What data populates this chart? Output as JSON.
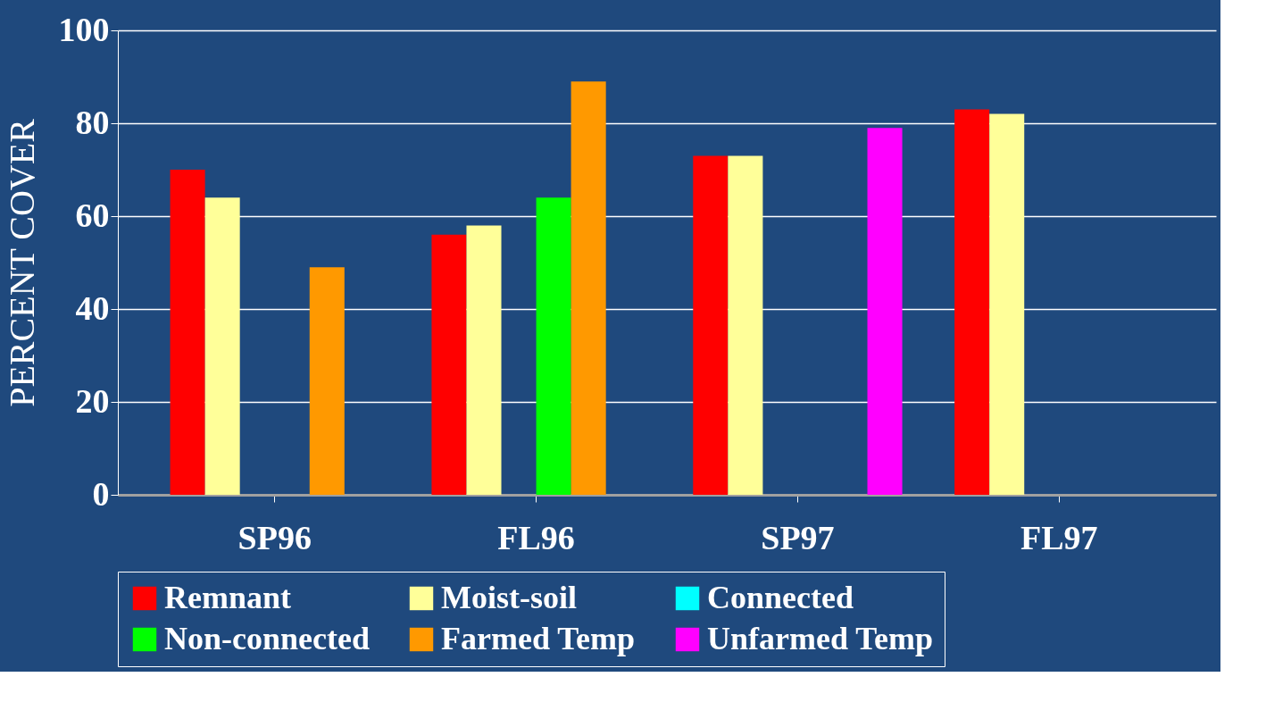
{
  "chart_data": {
    "type": "bar",
    "ylabel": "PERCENT COVER",
    "categories": [
      "SP96",
      "FL96",
      "SP97",
      "FL97"
    ],
    "series": [
      {
        "name": "Remnant",
        "color": "#ff0000",
        "values": [
          70,
          56,
          73,
          83
        ]
      },
      {
        "name": "Moist-soil",
        "color": "#ffff99",
        "values": [
          64,
          58,
          73,
          82
        ]
      },
      {
        "name": "Connected",
        "color": "#00ffff",
        "values": [
          0,
          0,
          0,
          0
        ]
      },
      {
        "name": "Non-connected",
        "color": "#00ff00",
        "values": [
          0,
          64,
          0,
          0
        ]
      },
      {
        "name": "Farmed Temp",
        "color": "#ff9900",
        "values": [
          49,
          89,
          0,
          0
        ]
      },
      {
        "name": "Unfarmed Temp",
        "color": "#ff00ff",
        "values": [
          0,
          0,
          79,
          0
        ]
      }
    ],
    "ylim": [
      0,
      100
    ],
    "yticks": [
      0,
      20,
      40,
      60,
      80,
      100
    ],
    "grid": "y",
    "legend": "bottom"
  }
}
